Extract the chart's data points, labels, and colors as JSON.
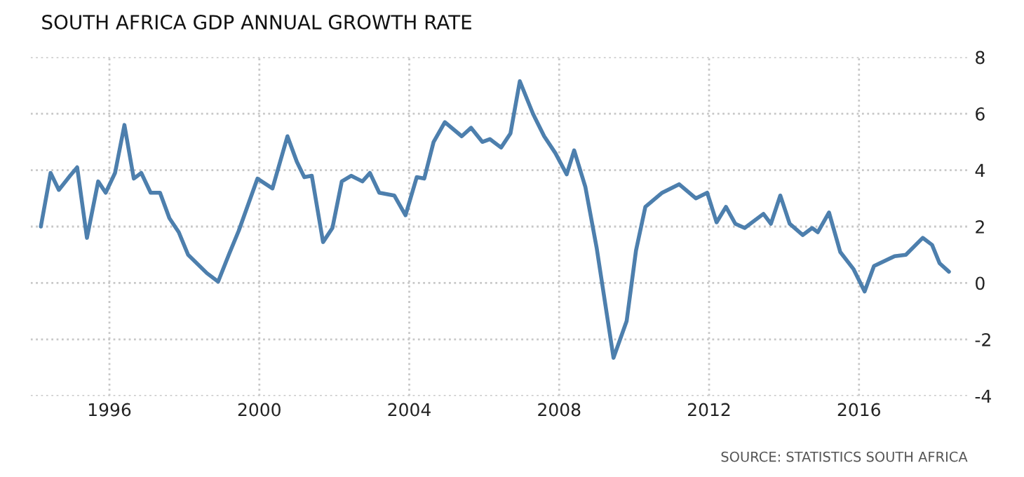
{
  "chart_data": {
    "type": "line",
    "title": "SOUTH AFRICA GDP ANNUAL GROWTH RATE",
    "annotations": [
      "SOURCE: STATISTICS SOUTH AFRICA"
    ],
    "x": [
      1994.17,
      1994.43,
      1994.65,
      1994.95,
      1995.14,
      1995.4,
      1995.7,
      1995.9,
      1996.15,
      1996.4,
      1996.65,
      1996.85,
      1997.1,
      1997.35,
      1997.6,
      1997.85,
      1998.1,
      1998.6,
      1998.9,
      1999.2,
      1999.45,
      1999.95,
      2000.35,
      2000.75,
      2001.0,
      2001.2,
      2001.4,
      2001.7,
      2001.95,
      2002.2,
      2002.45,
      2002.75,
      2002.95,
      2003.2,
      2003.6,
      2003.9,
      2004.2,
      2004.4,
      2004.65,
      2004.95,
      2005.4,
      2005.65,
      2005.95,
      2006.15,
      2006.45,
      2006.7,
      2006.95,
      2007.3,
      2007.6,
      2007.9,
      2008.2,
      2008.4,
      2008.7,
      2009.0,
      2009.45,
      2009.8,
      2010.05,
      2010.3,
      2010.75,
      2011.2,
      2011.65,
      2011.95,
      2012.2,
      2012.45,
      2012.7,
      2012.95,
      2013.45,
      2013.65,
      2013.9,
      2014.15,
      2014.5,
      2014.75,
      2014.9,
      2015.2,
      2015.5,
      2015.85,
      2016.15,
      2016.4,
      2016.95,
      2017.25,
      2017.7,
      2017.95,
      2018.15,
      2018.4
    ],
    "series": [
      {
        "color": "#4d7fad",
        "values": [
          2.0,
          3.9,
          3.3,
          3.8,
          4.1,
          1.6,
          3.6,
          3.2,
          3.9,
          5.6,
          3.7,
          3.9,
          3.2,
          3.2,
          2.3,
          1.8,
          1.0,
          0.35,
          0.05,
          1.05,
          1.85,
          3.7,
          3.35,
          5.2,
          4.3,
          3.75,
          3.8,
          1.45,
          1.95,
          3.6,
          3.8,
          3.6,
          3.9,
          3.2,
          3.1,
          2.4,
          3.75,
          3.7,
          5.0,
          5.7,
          5.2,
          5.5,
          5.0,
          5.1,
          4.8,
          5.3,
          7.15,
          6.0,
          5.2,
          4.6,
          3.85,
          4.7,
          3.4,
          1.25,
          -2.65,
          -1.35,
          1.15,
          2.7,
          3.2,
          3.5,
          3.0,
          3.2,
          2.15,
          2.7,
          2.1,
          1.95,
          2.45,
          2.1,
          3.1,
          2.1,
          1.7,
          1.95,
          1.8,
          2.5,
          1.1,
          0.5,
          -0.3,
          0.6,
          0.95,
          1.0,
          1.6,
          1.35,
          0.7,
          0.4
        ]
      }
    ],
    "xlim": [
      1993.9,
      2018.9
    ],
    "xticks": [
      1996,
      2000,
      2004,
      2008,
      2012,
      2016
    ],
    "ylim": [
      -4,
      8
    ],
    "yticks": [
      -4,
      -2,
      0,
      2,
      4,
      6,
      8
    ],
    "grid": true,
    "marker": "none",
    "line_style": "solid",
    "legend": false
  }
}
